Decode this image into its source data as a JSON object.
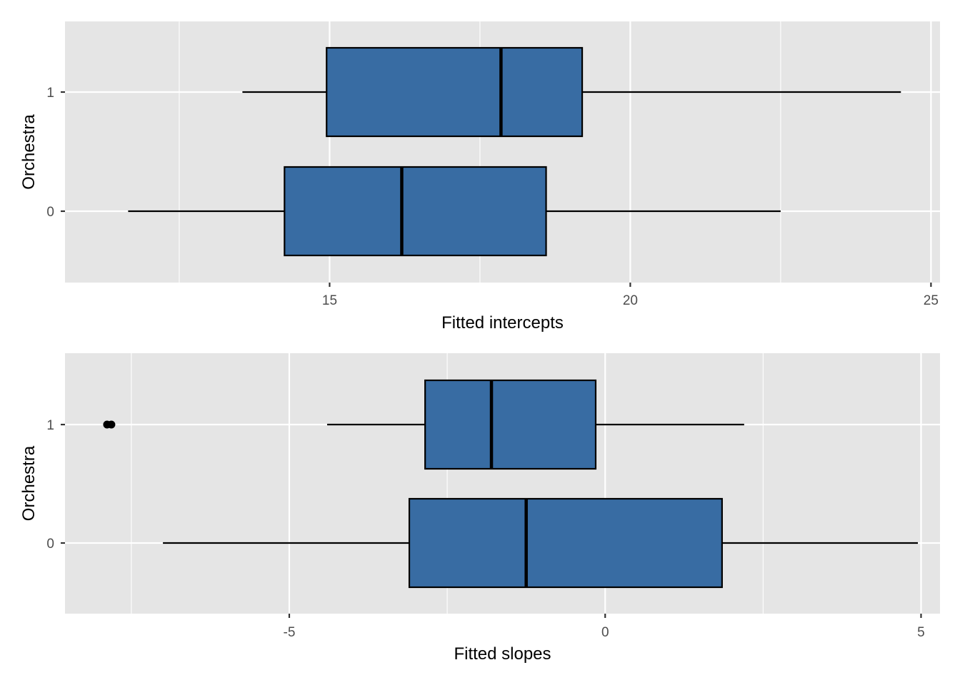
{
  "chart_data": [
    {
      "type": "boxplot",
      "orientation": "horizontal",
      "xlabel": "Fitted intercepts",
      "ylabel": "Orchestra",
      "categories": [
        "0",
        "1"
      ],
      "xlim": [
        10.6,
        25.15
      ],
      "xticks": [
        15,
        20,
        25
      ],
      "xtick_labels": [
        "15",
        "20",
        "25"
      ],
      "grid": true,
      "boxes": [
        {
          "category": "0",
          "whisker_low": 11.65,
          "q1": 14.25,
          "median": 16.2,
          "q3": 18.6,
          "whisker_high": 22.5,
          "outliers": []
        },
        {
          "category": "1",
          "whisker_low": 13.55,
          "q1": 14.95,
          "median": 17.85,
          "q3": 19.2,
          "whisker_high": 24.5,
          "outliers": []
        }
      ]
    },
    {
      "type": "boxplot",
      "orientation": "horizontal",
      "xlabel": "Fitted slopes",
      "ylabel": "Orchestra",
      "categories": [
        "0",
        "1"
      ],
      "xlim": [
        -8.55,
        5.3
      ],
      "xticks": [
        -5,
        0,
        5
      ],
      "xtick_labels": [
        "-5",
        "0",
        "5"
      ],
      "grid": true,
      "boxes": [
        {
          "category": "0",
          "whisker_low": -7.0,
          "q1": -3.1,
          "median": -1.25,
          "q3": 1.85,
          "whisker_high": 4.95,
          "outliers": []
        },
        {
          "category": "1",
          "whisker_low": -4.4,
          "q1": -2.85,
          "median": -1.8,
          "q3": -0.15,
          "whisker_high": 2.2,
          "outliers": [
            -7.85
          ]
        }
      ]
    }
  ],
  "style": {
    "panel_bg": "#e5e5e5",
    "grid_color": "#ffffff",
    "box_fill": "#386ca3",
    "line_color": "#000000",
    "axis_text_color": "#4d4d4d",
    "title_color": "#000000"
  }
}
